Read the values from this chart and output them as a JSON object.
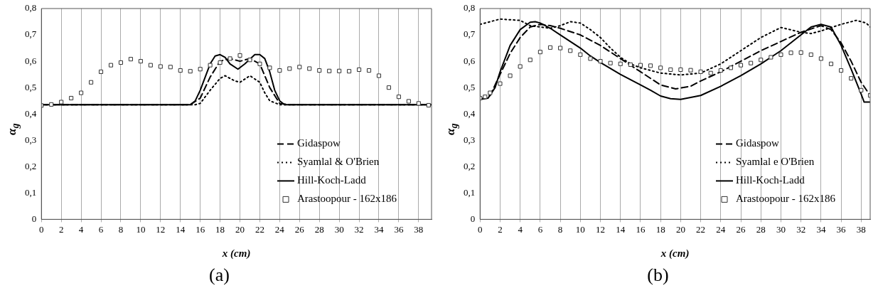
{
  "chart_data": [
    {
      "type": "line",
      "title": "(a)",
      "xlabel": "x (cm)",
      "ylabel": "α$_{g}$",
      "xlim": [
        0,
        39.3
      ],
      "ylim": [
        0,
        0.8
      ],
      "xticks": [
        0,
        2,
        4,
        6,
        8,
        10,
        12,
        14,
        16,
        18,
        20,
        22,
        24,
        26,
        28,
        30,
        32,
        34,
        36,
        38
      ],
      "yticks": [
        0,
        {
          "value": 0.1,
          "label": "0,1"
        },
        {
          "value": 0.2,
          "label": "0,2"
        },
        {
          "value": 0.3,
          "label": "0,3"
        },
        {
          "value": 0.4,
          "label": "0,4"
        },
        {
          "value": 0.5,
          "label": "0,5"
        },
        {
          "value": 0.6,
          "label": "0,6"
        },
        {
          "value": 0.7,
          "label": "0,7"
        },
        {
          "value": 0.8,
          "label": "0,8"
        }
      ],
      "grid": "x",
      "legend": "bottom right",
      "series": [
        {
          "name": "Gidaspow",
          "color": "#000000",
          "line_style": "dashed",
          "marker": "none",
          "x": [
            0,
            15,
            16,
            17,
            18,
            19,
            20,
            21,
            22,
            23,
            24,
            25,
            39.3
          ],
          "values": [
            0.435,
            0.435,
            0.46,
            0.54,
            0.6,
            0.61,
            0.6,
            0.61,
            0.59,
            0.5,
            0.44,
            0.435,
            0.435
          ]
        },
        {
          "name": "Syamlal & O'Brien",
          "color": "#000000",
          "line_style": "dotted",
          "marker": "none",
          "x": [
            0,
            15.5,
            16,
            17,
            18,
            18.5,
            19.5,
            20,
            21,
            22,
            22.5,
            23,
            24,
            39.3
          ],
          "values": [
            0.435,
            0.435,
            0.44,
            0.49,
            0.535,
            0.545,
            0.525,
            0.52,
            0.545,
            0.52,
            0.48,
            0.45,
            0.435,
            0.435
          ]
        },
        {
          "name": "Hill-Koch-Ladd",
          "color": "#000000",
          "line_style": "solid",
          "marker": "none",
          "x": [
            0,
            15,
            15.5,
            16,
            17,
            17.5,
            18,
            18.5,
            19,
            19.8,
            20.5,
            21.5,
            22,
            22.5,
            23,
            23.5,
            24,
            24.5,
            39.3
          ],
          "values": [
            0.435,
            0.435,
            0.45,
            0.49,
            0.59,
            0.62,
            0.625,
            0.615,
            0.59,
            0.57,
            0.59,
            0.625,
            0.625,
            0.61,
            0.56,
            0.49,
            0.45,
            0.435,
            0.435
          ]
        },
        {
          "name": "Arastoopour - 162x186",
          "type": "scatter",
          "color": "#333333",
          "marker": "square",
          "x": [
            0,
            1,
            2,
            3,
            4,
            5,
            6,
            7,
            8,
            9,
            10,
            11,
            12,
            13,
            14,
            15,
            16,
            17,
            18,
            19,
            20,
            21,
            22,
            23,
            24,
            25,
            26,
            27,
            28,
            29,
            30,
            31,
            32,
            33,
            34,
            35,
            36,
            37,
            38,
            39
          ],
          "values": [
            0.432,
            0.436,
            0.445,
            0.46,
            0.48,
            0.52,
            0.56,
            0.585,
            0.595,
            0.608,
            0.6,
            0.585,
            0.58,
            0.578,
            0.565,
            0.562,
            0.57,
            0.585,
            0.595,
            0.61,
            0.622,
            0.605,
            0.59,
            0.575,
            0.565,
            0.572,
            0.578,
            0.572,
            0.565,
            0.563,
            0.563,
            0.562,
            0.568,
            0.565,
            0.545,
            0.5,
            0.465,
            0.448,
            0.44,
            0.433
          ]
        }
      ]
    },
    {
      "type": "line",
      "title": "(b)",
      "xlabel": "x (cm)",
      "ylabel": "α$_{g}$",
      "xlim": [
        0,
        38.9
      ],
      "ylim": [
        0,
        0.8
      ],
      "xticks": [
        0,
        2,
        4,
        6,
        8,
        10,
        12,
        14,
        16,
        18,
        20,
        22,
        24,
        26,
        28,
        30,
        32,
        34,
        36,
        38
      ],
      "yticks": [
        0,
        {
          "value": 0.1,
          "label": "0,1"
        },
        {
          "value": 0.2,
          "label": "0,2"
        },
        {
          "value": 0.3,
          "label": "0,3"
        },
        {
          "value": 0.4,
          "label": "0,4"
        },
        {
          "value": 0.5,
          "label": "0,5"
        },
        {
          "value": 0.6,
          "label": "0,6"
        },
        {
          "value": 0.7,
          "label": "0,7"
        },
        {
          "value": 0.8,
          "label": "0,8"
        }
      ],
      "grid": "x",
      "legend": "bottom right",
      "series": [
        {
          "name": "Gidaspow",
          "color": "#000000",
          "line_style": "dashed",
          "marker": "none",
          "x": [
            0,
            1,
            2,
            3,
            4,
            5,
            6,
            7,
            8,
            10,
            12,
            14,
            16,
            18,
            19.5,
            21,
            22,
            24,
            26,
            28,
            30,
            32,
            34,
            35,
            36,
            37,
            38,
            38.9
          ],
          "values": [
            0.455,
            0.47,
            0.55,
            0.63,
            0.69,
            0.73,
            0.74,
            0.735,
            0.725,
            0.7,
            0.66,
            0.61,
            0.56,
            0.51,
            0.495,
            0.505,
            0.525,
            0.56,
            0.6,
            0.64,
            0.675,
            0.71,
            0.735,
            0.72,
            0.67,
            0.6,
            0.52,
            0.47
          ]
        },
        {
          "name": "Syamlal e O'Brien",
          "color": "#000000",
          "line_style": "dotted",
          "marker": "none",
          "x": [
            0,
            2,
            4,
            5,
            6,
            7,
            8,
            9,
            10,
            11,
            12,
            13,
            14,
            15,
            16,
            18,
            20,
            22,
            24,
            26,
            28,
            30,
            32,
            33,
            34,
            36,
            37.5,
            38.5,
            38.9
          ],
          "values": [
            0.74,
            0.76,
            0.755,
            0.735,
            0.73,
            0.725,
            0.735,
            0.75,
            0.745,
            0.72,
            0.69,
            0.65,
            0.615,
            0.59,
            0.575,
            0.555,
            0.548,
            0.555,
            0.59,
            0.64,
            0.69,
            0.728,
            0.71,
            0.705,
            0.715,
            0.74,
            0.755,
            0.745,
            0.73
          ]
        },
        {
          "name": "Hill-Koch-Ladd",
          "color": "#000000",
          "line_style": "solid",
          "marker": "none",
          "x": [
            0,
            0.8,
            1.5,
            2,
            3,
            4,
            5,
            5.5,
            6,
            7,
            8,
            9,
            10,
            11,
            12,
            14,
            16,
            17,
            18,
            19,
            20,
            22,
            24,
            26,
            28,
            30,
            32,
            33,
            34,
            35,
            36,
            37,
            38,
            38.3,
            38.9
          ],
          "values": [
            0.455,
            0.46,
            0.5,
            0.56,
            0.66,
            0.72,
            0.748,
            0.75,
            0.745,
            0.725,
            0.7,
            0.675,
            0.65,
            0.62,
            0.595,
            0.55,
            0.51,
            0.49,
            0.468,
            0.458,
            0.455,
            0.47,
            0.505,
            0.545,
            0.59,
            0.64,
            0.7,
            0.73,
            0.74,
            0.73,
            0.66,
            0.57,
            0.475,
            0.445,
            0.445
          ]
        },
        {
          "name": "Arastoopour - 162x186",
          "type": "scatter",
          "color": "#333333",
          "marker": "square",
          "x": [
            0,
            0.5,
            1,
            2,
            3,
            4,
            5,
            6,
            7,
            8,
            9,
            10,
            11,
            12,
            13,
            14,
            15,
            16,
            17,
            18,
            19,
            20,
            21,
            22,
            23,
            24,
            25,
            26,
            27,
            28,
            29,
            30,
            31,
            32,
            33,
            34,
            35,
            36,
            37,
            38,
            38.9
          ],
          "values": [
            0.46,
            0.465,
            0.48,
            0.515,
            0.545,
            0.58,
            0.605,
            0.635,
            0.652,
            0.65,
            0.64,
            0.625,
            0.61,
            0.6,
            0.593,
            0.59,
            0.587,
            0.585,
            0.583,
            0.575,
            0.568,
            0.568,
            0.566,
            0.56,
            0.555,
            0.565,
            0.575,
            0.585,
            0.593,
            0.605,
            0.615,
            0.625,
            0.632,
            0.633,
            0.625,
            0.61,
            0.59,
            0.565,
            0.535,
            0.49,
            0.47
          ]
        }
      ]
    }
  ]
}
